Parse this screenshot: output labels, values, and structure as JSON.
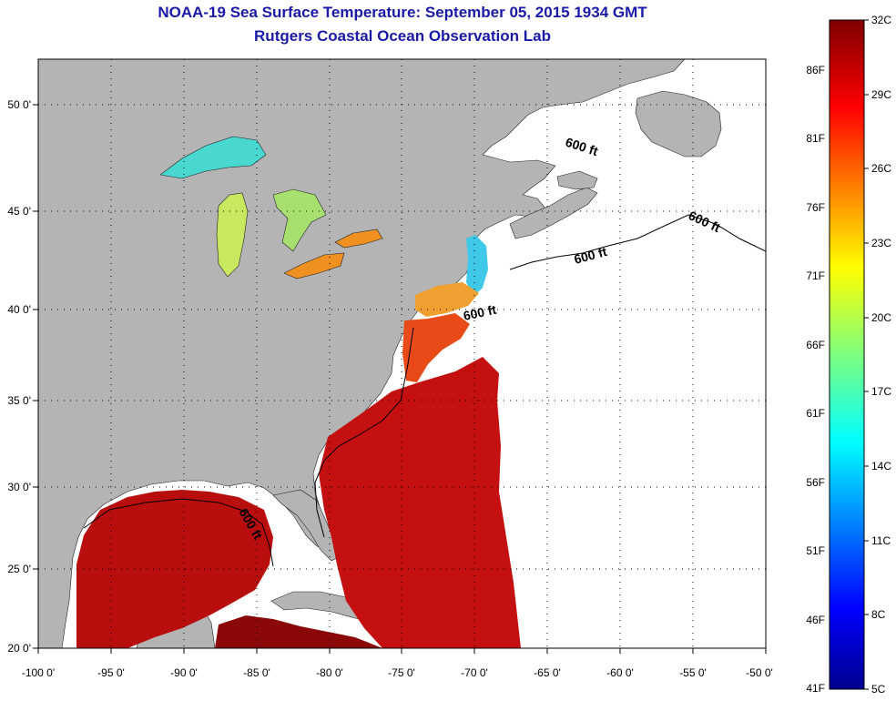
{
  "title": {
    "line1": "NOAA-19 Sea Surface Temperature:  September 05, 2015 1934 GMT",
    "line2": "Rutgers Coastal Ocean Observation Lab"
  },
  "map": {
    "lon_ticks": [
      "-100 0'",
      "-95 0'",
      "-90 0'",
      "-85 0'",
      "-80 0'",
      "-75 0'",
      "-70 0'",
      "-65 0'",
      "-60 0'",
      "-55 0'",
      "-50 0'"
    ],
    "lat_ticks": [
      "50 0'",
      "45 0'",
      "40 0'",
      "35 0'",
      "30 0'",
      "25 0'",
      "20 0'"
    ],
    "contour_label": "600 ft",
    "colors": {
      "land": "#b4b4b4",
      "no_data": "#ffffff",
      "grid": "#000000"
    }
  },
  "colorbar": {
    "celsius": [
      "32C",
      "29C",
      "26C",
      "23C",
      "20C",
      "17C",
      "14C",
      "11C",
      "8C",
      "5C"
    ],
    "fahrenheit": [
      "86F",
      "81F",
      "76F",
      "71F",
      "66F",
      "61F",
      "56F",
      "51F",
      "46F",
      "41F"
    ]
  }
}
